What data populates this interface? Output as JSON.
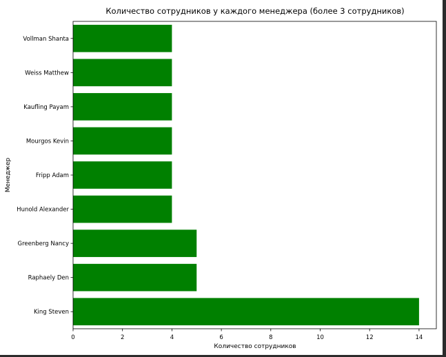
{
  "chart_data": {
    "type": "bar",
    "orientation": "horizontal",
    "title": "Количество сотрудников у каждого менеджера (более 3 сотрудников)",
    "xlabel": "Количество сотрудников",
    "ylabel": "Менеджер",
    "categories": [
      "King Steven",
      "Raphaely Den",
      "Greenberg Nancy",
      "Hunold Alexander",
      "Fripp Adam",
      "Mourgos Kevin",
      "Kaufling Payam",
      "Weiss Matthew",
      "Vollman Shanta"
    ],
    "values": [
      14,
      5,
      5,
      4,
      4,
      4,
      4,
      4,
      4
    ],
    "xlim": [
      0,
      14.7
    ],
    "xticks": [
      0,
      2,
      4,
      6,
      8,
      10,
      12,
      14
    ],
    "bar_color": "#008000",
    "grid": false
  }
}
